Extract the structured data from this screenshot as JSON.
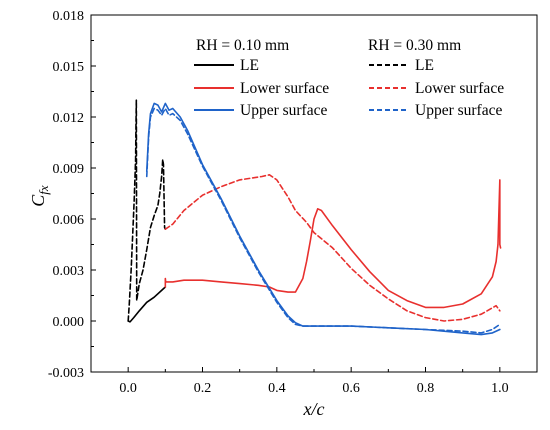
{
  "chart_data": {
    "type": "line",
    "title": "",
    "xlabel": "x/c",
    "ylabel_main": "C",
    "ylabel_sub": "fx",
    "xlim": [
      -0.1,
      1.1
    ],
    "ylim": [
      -0.003,
      0.018
    ],
    "x_ticks": [
      0.0,
      0.2,
      0.4,
      0.6,
      0.8,
      1.0
    ],
    "x_tick_labels": [
      "0.0",
      "0.2",
      "0.4",
      "0.6",
      "0.8",
      "1.0"
    ],
    "y_ticks": [
      -0.003,
      0.0,
      0.003,
      0.006,
      0.009,
      0.012,
      0.015,
      0.018
    ],
    "y_tick_labels": [
      "-0.003",
      "0.000",
      "0.003",
      "0.006",
      "0.009",
      "0.012",
      "0.015",
      "0.018"
    ],
    "grid": false,
    "legend": {
      "placement": "top-right",
      "groups": [
        {
          "title": "RH = 0.10 mm",
          "style": "solid"
        },
        {
          "title": "RH = 0.30 mm",
          "style": "dashed"
        }
      ],
      "entries": [
        "LE",
        "Lower surface",
        "Upper surface"
      ]
    },
    "colors": {
      "LE": "#000000",
      "Lower surface": "#e8302e",
      "Upper surface": "#1f63c9"
    },
    "series": [
      {
        "name": "LE",
        "group": "RH = 0.10 mm",
        "x": [
          0.0,
          0.005,
          0.015,
          0.03,
          0.05,
          0.07,
          0.09,
          0.1
        ],
        "y": [
          0.0,
          -5e-05,
          0.0002,
          0.0006,
          0.0011,
          0.0014,
          0.0018,
          0.002
        ]
      },
      {
        "name": "LE",
        "group": "RH = 0.30 mm",
        "x": [
          0.0,
          0.003,
          0.008,
          0.012,
          0.016,
          0.02,
          0.021,
          0.022,
          0.023,
          0.025,
          0.03,
          0.04,
          0.05,
          0.06,
          0.07,
          0.08,
          0.085,
          0.09,
          0.093,
          0.095,
          0.098,
          0.1
        ],
        "y": [
          0.0,
          0.001,
          0.003,
          0.005,
          0.007,
          0.0095,
          0.0115,
          0.013,
          0.0012,
          0.0015,
          0.0022,
          0.003,
          0.0042,
          0.0055,
          0.0062,
          0.0068,
          0.0075,
          0.0085,
          0.0095,
          0.0092,
          0.0055,
          0.0054
        ]
      },
      {
        "name": "Lower surface",
        "group": "RH = 0.10 mm",
        "x": [
          0.1,
          0.1,
          0.101,
          0.12,
          0.15,
          0.2,
          0.25,
          0.3,
          0.35,
          0.38,
          0.4,
          0.43,
          0.45,
          0.47,
          0.48,
          0.49,
          0.5,
          0.51,
          0.52,
          0.55,
          0.6,
          0.65,
          0.7,
          0.75,
          0.8,
          0.85,
          0.9,
          0.95,
          0.98,
          0.99,
          0.995,
          1.0,
          1.0,
          1.002
        ],
        "y": [
          0.002,
          0.0025,
          0.0023,
          0.0023,
          0.0024,
          0.0024,
          0.0023,
          0.0022,
          0.0021,
          0.002,
          0.0018,
          0.0017,
          0.0017,
          0.0025,
          0.0035,
          0.0047,
          0.006,
          0.0066,
          0.0065,
          0.0056,
          0.0042,
          0.0029,
          0.0018,
          0.0012,
          0.0008,
          0.0008,
          0.001,
          0.0016,
          0.0026,
          0.0035,
          0.0045,
          0.0083,
          0.0045,
          0.0043
        ]
      },
      {
        "name": "Lower surface",
        "group": "RH = 0.30 mm",
        "x": [
          0.1,
          0.12,
          0.15,
          0.2,
          0.25,
          0.3,
          0.33,
          0.36,
          0.38,
          0.4,
          0.43,
          0.45,
          0.48,
          0.5,
          0.55,
          0.6,
          0.65,
          0.7,
          0.75,
          0.8,
          0.85,
          0.9,
          0.95,
          0.99,
          1.0
        ],
        "y": [
          0.0054,
          0.0057,
          0.0065,
          0.0074,
          0.0079,
          0.0083,
          0.0084,
          0.0085,
          0.0086,
          0.0083,
          0.0073,
          0.0065,
          0.0058,
          0.0052,
          0.0043,
          0.0031,
          0.0021,
          0.0013,
          0.0006,
          0.0002,
          0.0,
          0.0001,
          0.0004,
          0.0009,
          0.0006
        ]
      },
      {
        "name": "Upper surface",
        "group": "RH = 0.10 mm",
        "x": [
          0.05,
          0.055,
          0.06,
          0.07,
          0.08,
          0.09,
          0.1,
          0.11,
          0.12,
          0.14,
          0.16,
          0.2,
          0.25,
          0.3,
          0.35,
          0.4,
          0.43,
          0.45,
          0.47,
          0.5,
          0.6,
          0.7,
          0.8,
          0.9,
          0.95,
          0.98,
          1.0
        ],
        "y": [
          0.0088,
          0.011,
          0.0122,
          0.0128,
          0.0127,
          0.0123,
          0.0128,
          0.0124,
          0.0125,
          0.012,
          0.0112,
          0.0092,
          0.0072,
          0.005,
          0.003,
          0.0012,
          0.0003,
          -0.0001,
          -0.0003,
          -0.0003,
          -0.0003,
          -0.0004,
          -0.0005,
          -0.0007,
          -0.0008,
          -0.0007,
          -0.0005
        ]
      },
      {
        "name": "Upper surface",
        "group": "RH = 0.30 mm",
        "x": [
          0.05,
          0.055,
          0.06,
          0.07,
          0.08,
          0.09,
          0.1,
          0.11,
          0.12,
          0.14,
          0.16,
          0.2,
          0.25,
          0.3,
          0.35,
          0.4,
          0.43,
          0.45,
          0.47,
          0.5,
          0.6,
          0.7,
          0.8,
          0.9,
          0.95,
          0.98,
          1.0
        ],
        "y": [
          0.0085,
          0.0108,
          0.012,
          0.0125,
          0.0124,
          0.0121,
          0.0125,
          0.0121,
          0.0122,
          0.0118,
          0.011,
          0.0091,
          0.0071,
          0.0049,
          0.0029,
          0.0011,
          0.0002,
          -0.0002,
          -0.0003,
          -0.0003,
          -0.0003,
          -0.0004,
          -0.0005,
          -0.0006,
          -0.0007,
          -0.0005,
          -0.0002
        ]
      }
    ]
  }
}
